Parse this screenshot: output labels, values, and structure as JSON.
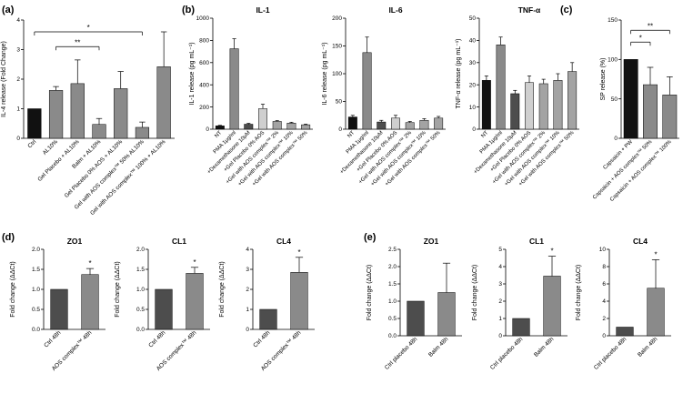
{
  "panels": {
    "a": "(a)",
    "b": "(b)",
    "c": "(c)",
    "d": "(d)",
    "e": "(e)"
  },
  "colors": {
    "black": "#111111",
    "gray": "#8a8a8a",
    "dark": "#4d4d4d",
    "light": "#cfcfcf",
    "mid": "#a3a3a3"
  },
  "chart_data": [
    {
      "id": "a",
      "type": "bar",
      "ylabel": "IL-4 release (Fold Change)",
      "ylim": [
        0,
        4
      ],
      "yticks": [
        0,
        1,
        2,
        3,
        4
      ],
      "categories": [
        "Ctrl",
        "AL10%",
        "Gel Placebo + AL10%",
        "Balm + AL10%",
        "Gel Placebo 0% AOS + AL10%",
        "Gel with AOS complex™ 50% AL10%",
        "Gel with AOS complex™ 100% + AL10%"
      ],
      "values": [
        1.0,
        1.62,
        1.85,
        0.47,
        1.68,
        0.37,
        2.42
      ],
      "errors": [
        0,
        0.13,
        0.8,
        0.2,
        0.58,
        0.18,
        1.18
      ],
      "colors": [
        "#111111",
        "#8a8a8a",
        "#8a8a8a",
        "#8a8a8a",
        "#8a8a8a",
        "#8a8a8a",
        "#8a8a8a"
      ],
      "significance": [
        {
          "from": 0,
          "to": 5,
          "label": "*",
          "y": 3.6
        },
        {
          "from": 1,
          "to": 3,
          "label": "**",
          "y": 3.1
        }
      ]
    },
    {
      "id": "b1",
      "type": "bar",
      "title": "IL-1",
      "ylabel": "IL-1 release (pg mL⁻¹)",
      "ylim": [
        0,
        1000
      ],
      "yticks": [
        0,
        200,
        400,
        600,
        800,
        1000
      ],
      "categories": [
        "NT",
        "PMA 1μg/ml",
        "+Dexamethasone 10μM",
        "+Gel Placebo 0% AOS",
        "+Gel with AOS complex™ 2%",
        "+Gel with AOS complex™ 10%",
        "+Gel with AOS complex™ 50%"
      ],
      "values": [
        30,
        725,
        45,
        185,
        70,
        55,
        40
      ],
      "errors": [
        5,
        90,
        8,
        40,
        8,
        8,
        6
      ],
      "colors": [
        "#111111",
        "#8a8a8a",
        "#4d4d4d",
        "#cfcfcf",
        "#a3a3a3",
        "#a3a3a3",
        "#a3a3a3"
      ]
    },
    {
      "id": "b2",
      "type": "bar",
      "title": "IL-6",
      "ylabel": "IL-6 release (pg mL⁻¹)",
      "ylim": [
        0,
        200
      ],
      "yticks": [
        0,
        50,
        100,
        150,
        200
      ],
      "categories": [
        "NT",
        "PMA 1μg/ml",
        "+Dexamethasone 10μM",
        "+Gel Placebo 0% AOS",
        "+Gel with AOS complex™ 2%",
        "+Gel with AOS complex™ 10%",
        "+Gel with AOS complex™ 50%"
      ],
      "values": [
        22,
        138,
        13,
        20,
        12,
        16,
        20
      ],
      "errors": [
        3,
        28,
        3,
        5,
        2,
        3,
        3
      ],
      "colors": [
        "#111111",
        "#8a8a8a",
        "#4d4d4d",
        "#cfcfcf",
        "#a3a3a3",
        "#a3a3a3",
        "#a3a3a3"
      ]
    },
    {
      "id": "b3",
      "type": "bar",
      "title": "TNF-α",
      "ylabel": "TNF-α release (pg mL⁻¹)",
      "ylim": [
        0,
        50
      ],
      "yticks": [
        0,
        10,
        20,
        30,
        40,
        50
      ],
      "categories": [
        "NT",
        "PMA 1μg/ml",
        "+Dexamethasone 10μM",
        "+Gel Placebo 0% AOS",
        "+Gel with AOS complex™ 2%",
        "+Gel with AOS complex™ 10%",
        "+Gel with AOS complex™ 50%"
      ],
      "values": [
        22,
        38,
        16,
        21,
        20.5,
        22,
        26
      ],
      "errors": [
        2,
        3.5,
        1.5,
        3,
        2,
        3,
        4
      ],
      "colors": [
        "#111111",
        "#8a8a8a",
        "#4d4d4d",
        "#cfcfcf",
        "#a3a3a3",
        "#a3a3a3",
        "#a3a3a3"
      ]
    },
    {
      "id": "c",
      "type": "bar",
      "ylabel": "SP release (%)",
      "ylim": [
        0,
        150
      ],
      "yticks": [
        0,
        50,
        100,
        150
      ],
      "categories": [
        "Capsaicin + PW",
        "Capsaicin + AOS complex™ 50%",
        "Capsaicin + AOS complex™ 100%"
      ],
      "values": [
        100,
        68,
        55
      ],
      "errors": [
        0,
        22,
        23
      ],
      "colors": [
        "#111111",
        "#8a8a8a",
        "#8a8a8a"
      ],
      "significance": [
        {
          "from": 0,
          "to": 1,
          "label": "*",
          "y": 122
        },
        {
          "from": 0,
          "to": 2,
          "label": "**",
          "y": 137
        }
      ]
    },
    {
      "id": "d1",
      "type": "bar",
      "title": "ZO1",
      "ylabel": "Fold change (ΔΔCt)",
      "ylim": [
        0,
        2.0
      ],
      "yticks": [
        0.0,
        0.5,
        1.0,
        1.5,
        2.0
      ],
      "tickDecimals": 1,
      "categories": [
        "Ctrl 48h",
        "AOS complex™ 48h"
      ],
      "values": [
        1.0,
        1.37
      ],
      "errors": [
        0,
        0.15
      ],
      "colors": [
        "#4d4d4d",
        "#8a8a8a"
      ],
      "stars": [
        "",
        "*"
      ]
    },
    {
      "id": "d2",
      "type": "bar",
      "title": "CL1",
      "ylabel": "Fold change (ΔΔCt)",
      "ylim": [
        0,
        2.0
      ],
      "yticks": [
        0.0,
        0.5,
        1.0,
        1.5,
        2.0
      ],
      "tickDecimals": 1,
      "categories": [
        "Ctrl 48h",
        "AOS complex™ 48h"
      ],
      "values": [
        1.0,
        1.4
      ],
      "errors": [
        0,
        0.15
      ],
      "colors": [
        "#4d4d4d",
        "#8a8a8a"
      ],
      "stars": [
        "",
        "*"
      ]
    },
    {
      "id": "d3",
      "type": "bar",
      "title": "CL4",
      "ylabel": "Fold change (ΔΔCt)",
      "ylim": [
        0,
        4
      ],
      "yticks": [
        0,
        1,
        2,
        3,
        4
      ],
      "categories": [
        "Ctrl 48h",
        "AOS complex™ 48h"
      ],
      "values": [
        1.0,
        2.85
      ],
      "errors": [
        0,
        0.75
      ],
      "colors": [
        "#4d4d4d",
        "#8a8a8a"
      ],
      "stars": [
        "",
        "*"
      ]
    },
    {
      "id": "e1",
      "type": "bar",
      "title": "ZO1",
      "ylabel": "Fold change (ΔΔCt)",
      "ylim": [
        0,
        2.5
      ],
      "yticks": [
        0.0,
        0.5,
        1.0,
        1.5,
        2.0,
        2.5
      ],
      "tickDecimals": 1,
      "categories": [
        "Ctrl placebo 48h",
        "Balm 48h"
      ],
      "values": [
        1.0,
        1.25
      ],
      "errors": [
        0,
        0.85
      ],
      "colors": [
        "#4d4d4d",
        "#8a8a8a"
      ],
      "stars": [
        "",
        ""
      ]
    },
    {
      "id": "e2",
      "type": "bar",
      "title": "CL1",
      "ylabel": "Fold change (ΔΔCt)",
      "ylim": [
        0,
        5
      ],
      "yticks": [
        0,
        1,
        2,
        3,
        4,
        5
      ],
      "categories": [
        "Ctrl placebo 48h",
        "Balm 48h"
      ],
      "values": [
        1.0,
        3.45
      ],
      "errors": [
        0,
        1.15
      ],
      "colors": [
        "#4d4d4d",
        "#8a8a8a"
      ],
      "stars": [
        "",
        "*"
      ]
    },
    {
      "id": "e3",
      "type": "bar",
      "title": "CL4",
      "ylabel": "Fold change (ΔΔCt)",
      "ylim": [
        0,
        10
      ],
      "yticks": [
        0,
        2,
        4,
        6,
        8,
        10
      ],
      "categories": [
        "Ctrl placebo 48h",
        "Balm 48h"
      ],
      "values": [
        1.0,
        5.5
      ],
      "errors": [
        0,
        3.3
      ],
      "colors": [
        "#4d4d4d",
        "#8a8a8a"
      ],
      "stars": [
        "",
        "*"
      ]
    }
  ]
}
